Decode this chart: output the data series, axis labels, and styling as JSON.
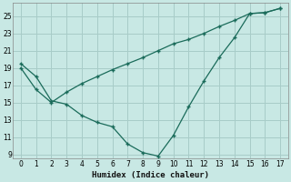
{
  "xlabel": "Humidex (Indice chaleur)",
  "background_color": "#c8e8e4",
  "grid_color": "#a8ccc8",
  "line_color": "#1a6b5a",
  "xlim": [
    -0.5,
    17.5
  ],
  "ylim": [
    8.5,
    26.5
  ],
  "xticks": [
    0,
    1,
    2,
    3,
    4,
    5,
    6,
    7,
    8,
    9,
    10,
    11,
    12,
    13,
    14,
    15,
    16,
    17
  ],
  "yticks": [
    9,
    11,
    13,
    15,
    17,
    19,
    21,
    23,
    25
  ],
  "line1_x": [
    0,
    1,
    2,
    3,
    4,
    5,
    6,
    7,
    8,
    9,
    10,
    11,
    12,
    13,
    14,
    15,
    16,
    17
  ],
  "line1_y": [
    19.5,
    18.0,
    15.2,
    14.8,
    13.5,
    12.7,
    12.2,
    10.2,
    9.2,
    8.8,
    11.2,
    14.5,
    17.5,
    20.2,
    22.5,
    25.3,
    25.4,
    25.9
  ],
  "line2_x": [
    0,
    1,
    2,
    3,
    4,
    5,
    6,
    7,
    8,
    9,
    10,
    11,
    12,
    13,
    14,
    15,
    16,
    17
  ],
  "line2_y": [
    19.0,
    16.5,
    15.0,
    16.2,
    17.2,
    18.0,
    18.8,
    19.5,
    20.2,
    21.0,
    21.8,
    22.3,
    23.0,
    23.8,
    24.5,
    25.3,
    25.4,
    25.9
  ],
  "figsize": [
    3.2,
    2.0
  ],
  "dpi": 100
}
